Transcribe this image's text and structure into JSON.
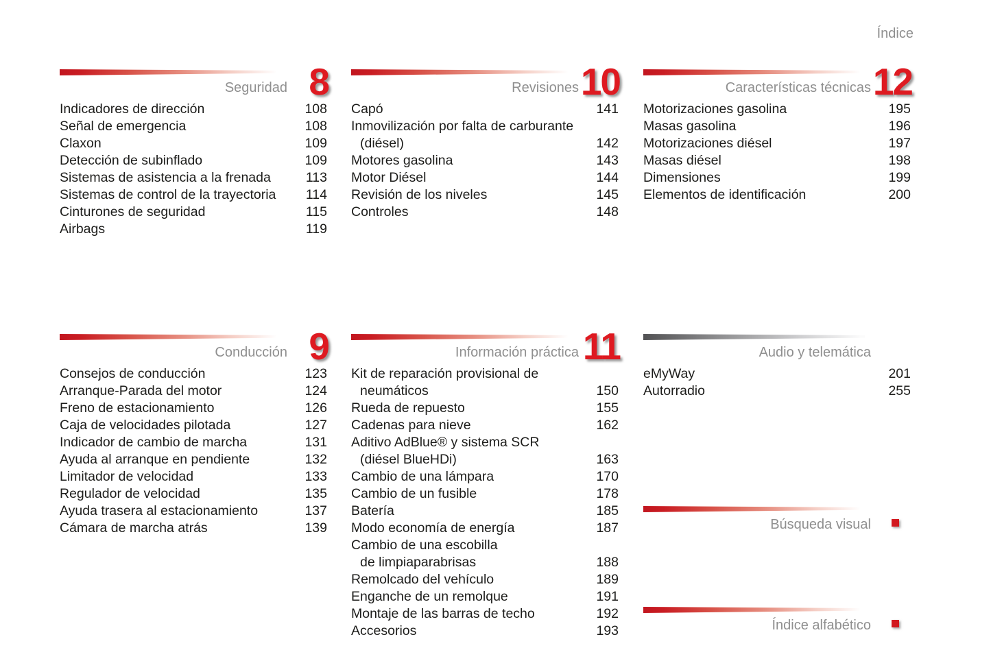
{
  "page": {
    "title": "Índice"
  },
  "colors": {
    "accent_red": "#de1a21",
    "bar_red_start": "#c2161f",
    "bar_gray_start": "#525254",
    "label_gray": "#8f8f8f",
    "text": "#1d1d1b"
  },
  "sections": [
    {
      "title": "Seguridad",
      "chapter": "8",
      "items": [
        {
          "lines": [
            "Indicadores de dirección"
          ],
          "page": "108"
        },
        {
          "lines": [
            "Señal de emergencia"
          ],
          "page": "108"
        },
        {
          "lines": [
            "Claxon"
          ],
          "page": "109"
        },
        {
          "lines": [
            "Detección de subinflado"
          ],
          "page": "109"
        },
        {
          "lines": [
            "Sistemas de asistencia a la frenada"
          ],
          "page": "113"
        },
        {
          "lines": [
            "Sistemas de control de la trayectoria"
          ],
          "page": "114"
        },
        {
          "lines": [
            "Cinturones de seguridad"
          ],
          "page": "115"
        },
        {
          "lines": [
            "Airbags"
          ],
          "page": "119"
        }
      ]
    },
    {
      "title": "Revisiones",
      "chapter": "10",
      "items": [
        {
          "lines": [
            "Capó"
          ],
          "page": "141"
        },
        {
          "lines": [
            "Inmovilización por falta de carburante",
            "(diésel)"
          ],
          "page": "142"
        },
        {
          "lines": [
            "Motores gasolina"
          ],
          "page": "143"
        },
        {
          "lines": [
            "Motor Diésel"
          ],
          "page": "144"
        },
        {
          "lines": [
            "Revisión de los niveles"
          ],
          "page": "145"
        },
        {
          "lines": [
            "Controles"
          ],
          "page": "148"
        }
      ]
    },
    {
      "title": "Características técnicas",
      "chapter": "12",
      "items": [
        {
          "lines": [
            "Motorizaciones gasolina"
          ],
          "page": "195"
        },
        {
          "lines": [
            "Masas gasolina"
          ],
          "page": "196"
        },
        {
          "lines": [
            "Motorizaciones diésel"
          ],
          "page": "197"
        },
        {
          "lines": [
            "Masas diésel"
          ],
          "page": "198"
        },
        {
          "lines": [
            "Dimensiones"
          ],
          "page": "199"
        },
        {
          "lines": [
            "Elementos de identificación"
          ],
          "page": "200"
        }
      ]
    },
    {
      "title": "Conducción",
      "chapter": "9",
      "items": [
        {
          "lines": [
            "Consejos de conducción"
          ],
          "page": "123"
        },
        {
          "lines": [
            "Arranque-Parada del motor"
          ],
          "page": "124"
        },
        {
          "lines": [
            "Freno de estacionamiento"
          ],
          "page": "126"
        },
        {
          "lines": [
            "Caja de velocidades pilotada"
          ],
          "page": "127"
        },
        {
          "lines": [
            "Indicador de cambio de marcha"
          ],
          "page": "131"
        },
        {
          "lines": [
            "Ayuda al arranque en pendiente"
          ],
          "page": "132"
        },
        {
          "lines": [
            "Limitador de velocidad"
          ],
          "page": "133"
        },
        {
          "lines": [
            "Regulador de velocidad"
          ],
          "page": "135"
        },
        {
          "lines": [
            "Ayuda trasera al estacionamiento"
          ],
          "page": "137"
        },
        {
          "lines": [
            "Cámara de marcha atrás"
          ],
          "page": "139"
        }
      ]
    },
    {
      "title": "Información práctica",
      "chapter": "11",
      "items": [
        {
          "lines": [
            "Kit de reparación provisional de",
            "neumáticos"
          ],
          "page": "150"
        },
        {
          "lines": [
            "Rueda de repuesto"
          ],
          "page": "155"
        },
        {
          "lines": [
            "Cadenas para nieve"
          ],
          "page": "162"
        },
        {
          "lines": [
            "Aditivo AdBlue® y sistema SCR",
            "(diésel BlueHDi)"
          ],
          "page": "163"
        },
        {
          "lines": [
            "Cambio de una lámpara"
          ],
          "page": "170"
        },
        {
          "lines": [
            "Cambio de un fusible"
          ],
          "page": "178"
        },
        {
          "lines": [
            "Batería"
          ],
          "page": "185"
        },
        {
          "lines": [
            "Modo economía de energía"
          ],
          "page": "187"
        },
        {
          "lines": [
            "Cambio de una escobilla",
            "de limpiaparabrisas"
          ],
          "page": "188"
        },
        {
          "lines": [
            "Remolcado del vehículo"
          ],
          "page": "189"
        },
        {
          "lines": [
            "Enganche de un remolque"
          ],
          "page": "191"
        },
        {
          "lines": [
            "Montaje de las barras de techo"
          ],
          "page": "192"
        },
        {
          "lines": [
            "Accesorios"
          ],
          "page": "193"
        }
      ]
    },
    {
      "title": "Audio y telemática",
      "chapter": "",
      "items": [
        {
          "lines": [
            "eMyWay"
          ],
          "page": "201"
        },
        {
          "lines": [
            "Autorradio"
          ],
          "page": "255"
        }
      ]
    },
    {
      "title": "Búsqueda visual",
      "chapter": "",
      "items": []
    },
    {
      "title": "Índice alfabético",
      "chapter": "",
      "items": []
    }
  ]
}
